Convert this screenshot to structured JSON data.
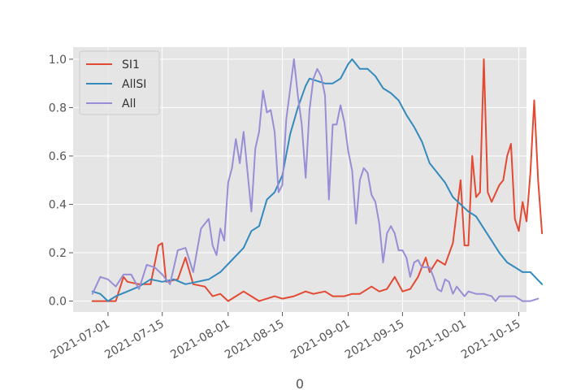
{
  "chart_data": {
    "type": "line",
    "xlabel": "0",
    "ylabel": "",
    "ylim": [
      -0.045,
      1.05
    ],
    "xlim": [
      "2021-06-22",
      "2021-10-17"
    ],
    "grid": true,
    "legend_position": "top-left",
    "x_ticks": [
      "2021-07-01",
      "2021-07-15",
      "2021-08-01",
      "2021-08-15",
      "2021-09-01",
      "2021-09-15",
      "2021-10-01",
      "2021-10-15"
    ],
    "y_ticks": [
      "0.0",
      "0.2",
      "0.4",
      "0.6",
      "0.8",
      "1.0"
    ],
    "series": [
      {
        "name": "SI1",
        "color": "#E24A33",
        "points": [
          [
            "2021-06-27",
            0.0
          ],
          [
            "2021-06-30",
            0.0
          ],
          [
            "2021-07-03",
            0.0
          ],
          [
            "2021-07-05",
            0.1
          ],
          [
            "2021-07-06",
            0.08
          ],
          [
            "2021-07-09",
            0.07
          ],
          [
            "2021-07-12",
            0.07
          ],
          [
            "2021-07-14",
            0.23
          ],
          [
            "2021-07-15",
            0.24
          ],
          [
            "2021-07-16",
            0.08
          ],
          [
            "2021-07-19",
            0.09
          ],
          [
            "2021-07-21",
            0.18
          ],
          [
            "2021-07-23",
            0.07
          ],
          [
            "2021-07-26",
            0.06
          ],
          [
            "2021-07-28",
            0.02
          ],
          [
            "2021-07-30",
            0.03
          ],
          [
            "2021-08-01",
            0.0
          ],
          [
            "2021-08-03",
            0.02
          ],
          [
            "2021-08-05",
            0.04
          ],
          [
            "2021-08-07",
            0.02
          ],
          [
            "2021-08-09",
            0.0
          ],
          [
            "2021-08-11",
            0.01
          ],
          [
            "2021-08-13",
            0.02
          ],
          [
            "2021-08-15",
            0.01
          ],
          [
            "2021-08-18",
            0.02
          ],
          [
            "2021-08-21",
            0.04
          ],
          [
            "2021-08-23",
            0.03
          ],
          [
            "2021-08-26",
            0.04
          ],
          [
            "2021-08-28",
            0.02
          ],
          [
            "2021-08-31",
            0.02
          ],
          [
            "2021-09-02",
            0.03
          ],
          [
            "2021-09-04",
            0.03
          ],
          [
            "2021-09-07",
            0.06
          ],
          [
            "2021-09-09",
            0.04
          ],
          [
            "2021-09-11",
            0.05
          ],
          [
            "2021-09-13",
            0.1
          ],
          [
            "2021-09-15",
            0.04
          ],
          [
            "2021-09-17",
            0.05
          ],
          [
            "2021-09-19",
            0.1
          ],
          [
            "2021-09-21",
            0.18
          ],
          [
            "2021-09-22",
            0.12
          ],
          [
            "2021-09-24",
            0.17
          ],
          [
            "2021-09-26",
            0.15
          ],
          [
            "2021-09-28",
            0.24
          ],
          [
            "2021-09-30",
            0.5
          ],
          [
            "2021-10-01",
            0.23
          ],
          [
            "2021-10-02",
            0.23
          ],
          [
            "2021-10-03",
            0.6
          ],
          [
            "2021-10-04",
            0.43
          ],
          [
            "2021-10-05",
            0.45
          ],
          [
            "2021-10-06",
            1.0
          ],
          [
            "2021-10-07",
            0.45
          ],
          [
            "2021-10-08",
            0.41
          ],
          [
            "2021-10-10",
            0.48
          ],
          [
            "2021-10-11",
            0.5
          ],
          [
            "2021-10-12",
            0.6
          ],
          [
            "2021-10-13",
            0.65
          ],
          [
            "2021-10-14",
            0.34
          ],
          [
            "2021-10-15",
            0.29
          ],
          [
            "2021-10-16",
            0.41
          ],
          [
            "2021-10-17",
            0.33
          ],
          [
            "2021-10-18",
            0.53
          ],
          [
            "2021-10-19",
            0.83
          ],
          [
            "2021-10-20",
            0.5
          ],
          [
            "2021-10-21",
            0.28
          ]
        ]
      },
      {
        "name": "AllSI",
        "color": "#348ABD",
        "points": [
          [
            "2021-06-27",
            0.04
          ],
          [
            "2021-06-29",
            0.03
          ],
          [
            "2021-07-01",
            0.0
          ],
          [
            "2021-07-03",
            0.02
          ],
          [
            "2021-07-06",
            0.04
          ],
          [
            "2021-07-09",
            0.06
          ],
          [
            "2021-07-12",
            0.09
          ],
          [
            "2021-07-15",
            0.08
          ],
          [
            "2021-07-18",
            0.09
          ],
          [
            "2021-07-21",
            0.07
          ],
          [
            "2021-07-24",
            0.08
          ],
          [
            "2021-07-27",
            0.09
          ],
          [
            "2021-07-30",
            0.12
          ],
          [
            "2021-08-02",
            0.17
          ],
          [
            "2021-08-05",
            0.22
          ],
          [
            "2021-08-07",
            0.29
          ],
          [
            "2021-08-09",
            0.31
          ],
          [
            "2021-08-11",
            0.42
          ],
          [
            "2021-08-13",
            0.45
          ],
          [
            "2021-08-15",
            0.52
          ],
          [
            "2021-08-17",
            0.69
          ],
          [
            "2021-08-19",
            0.8
          ],
          [
            "2021-08-21",
            0.89
          ],
          [
            "2021-08-22",
            0.92
          ],
          [
            "2021-08-24",
            0.91
          ],
          [
            "2021-08-26",
            0.9
          ],
          [
            "2021-08-28",
            0.9
          ],
          [
            "2021-08-30",
            0.92
          ],
          [
            "2021-09-01",
            0.98
          ],
          [
            "2021-09-02",
            1.0
          ],
          [
            "2021-09-04",
            0.96
          ],
          [
            "2021-09-06",
            0.96
          ],
          [
            "2021-09-08",
            0.93
          ],
          [
            "2021-09-10",
            0.88
          ],
          [
            "2021-09-12",
            0.86
          ],
          [
            "2021-09-14",
            0.83
          ],
          [
            "2021-09-16",
            0.77
          ],
          [
            "2021-09-18",
            0.72
          ],
          [
            "2021-09-20",
            0.66
          ],
          [
            "2021-09-22",
            0.57
          ],
          [
            "2021-09-24",
            0.53
          ],
          [
            "2021-09-26",
            0.49
          ],
          [
            "2021-09-28",
            0.43
          ],
          [
            "2021-09-30",
            0.4
          ],
          [
            "2021-10-02",
            0.37
          ],
          [
            "2021-10-04",
            0.35
          ],
          [
            "2021-10-06",
            0.3
          ],
          [
            "2021-10-08",
            0.25
          ],
          [
            "2021-10-10",
            0.2
          ],
          [
            "2021-10-12",
            0.16
          ],
          [
            "2021-10-14",
            0.14
          ],
          [
            "2021-10-16",
            0.12
          ],
          [
            "2021-10-18",
            0.12
          ],
          [
            "2021-10-21",
            0.07
          ]
        ]
      },
      {
        "name": "All",
        "color": "#988ED5",
        "points": [
          [
            "2021-06-27",
            0.03
          ],
          [
            "2021-06-29",
            0.1
          ],
          [
            "2021-07-01",
            0.09
          ],
          [
            "2021-07-03",
            0.06
          ],
          [
            "2021-07-05",
            0.11
          ],
          [
            "2021-07-07",
            0.11
          ],
          [
            "2021-07-09",
            0.05
          ],
          [
            "2021-07-11",
            0.15
          ],
          [
            "2021-07-13",
            0.14
          ],
          [
            "2021-07-15",
            0.11
          ],
          [
            "2021-07-17",
            0.07
          ],
          [
            "2021-07-19",
            0.21
          ],
          [
            "2021-07-21",
            0.22
          ],
          [
            "2021-07-23",
            0.12
          ],
          [
            "2021-07-25",
            0.3
          ],
          [
            "2021-07-27",
            0.34
          ],
          [
            "2021-07-28",
            0.23
          ],
          [
            "2021-07-29",
            0.19
          ],
          [
            "2021-07-30",
            0.3
          ],
          [
            "2021-07-31",
            0.25
          ],
          [
            "2021-08-01",
            0.49
          ],
          [
            "2021-08-02",
            0.55
          ],
          [
            "2021-08-03",
            0.67
          ],
          [
            "2021-08-04",
            0.57
          ],
          [
            "2021-08-05",
            0.7
          ],
          [
            "2021-08-07",
            0.37
          ],
          [
            "2021-08-08",
            0.63
          ],
          [
            "2021-08-09",
            0.7
          ],
          [
            "2021-08-10",
            0.87
          ],
          [
            "2021-08-11",
            0.78
          ],
          [
            "2021-08-12",
            0.79
          ],
          [
            "2021-08-13",
            0.7
          ],
          [
            "2021-08-14",
            0.45
          ],
          [
            "2021-08-15",
            0.48
          ],
          [
            "2021-08-16",
            0.75
          ],
          [
            "2021-08-18",
            1.0
          ],
          [
            "2021-08-19",
            0.85
          ],
          [
            "2021-08-20",
            0.73
          ],
          [
            "2021-08-21",
            0.51
          ],
          [
            "2021-08-22",
            0.79
          ],
          [
            "2021-08-23",
            0.92
          ],
          [
            "2021-08-24",
            0.96
          ],
          [
            "2021-08-25",
            0.93
          ],
          [
            "2021-08-26",
            0.85
          ],
          [
            "2021-08-27",
            0.42
          ],
          [
            "2021-08-28",
            0.73
          ],
          [
            "2021-08-29",
            0.73
          ],
          [
            "2021-08-30",
            0.81
          ],
          [
            "2021-08-31",
            0.74
          ],
          [
            "2021-09-01",
            0.62
          ],
          [
            "2021-09-02",
            0.54
          ],
          [
            "2021-09-03",
            0.32
          ],
          [
            "2021-09-04",
            0.5
          ],
          [
            "2021-09-05",
            0.55
          ],
          [
            "2021-09-06",
            0.53
          ],
          [
            "2021-09-07",
            0.44
          ],
          [
            "2021-09-08",
            0.41
          ],
          [
            "2021-09-09",
            0.32
          ],
          [
            "2021-09-10",
            0.16
          ],
          [
            "2021-09-11",
            0.28
          ],
          [
            "2021-09-12",
            0.31
          ],
          [
            "2021-09-13",
            0.28
          ],
          [
            "2021-09-14",
            0.21
          ],
          [
            "2021-09-15",
            0.21
          ],
          [
            "2021-09-16",
            0.18
          ],
          [
            "2021-09-17",
            0.1
          ],
          [
            "2021-09-18",
            0.16
          ],
          [
            "2021-09-19",
            0.17
          ],
          [
            "2021-09-20",
            0.14
          ],
          [
            "2021-09-22",
            0.14
          ],
          [
            "2021-09-23",
            0.1
          ],
          [
            "2021-09-24",
            0.05
          ],
          [
            "2021-09-25",
            0.04
          ],
          [
            "2021-09-26",
            0.09
          ],
          [
            "2021-09-27",
            0.08
          ],
          [
            "2021-09-28",
            0.03
          ],
          [
            "2021-09-29",
            0.06
          ],
          [
            "2021-09-30",
            0.04
          ],
          [
            "2021-10-01",
            0.02
          ],
          [
            "2021-10-02",
            0.04
          ],
          [
            "2021-10-04",
            0.03
          ],
          [
            "2021-10-06",
            0.03
          ],
          [
            "2021-10-08",
            0.02
          ],
          [
            "2021-10-09",
            0.0
          ],
          [
            "2021-10-10",
            0.02
          ],
          [
            "2021-10-12",
            0.02
          ],
          [
            "2021-10-14",
            0.02
          ],
          [
            "2021-10-16",
            0.0
          ],
          [
            "2021-10-18",
            0.0
          ],
          [
            "2021-10-20",
            0.01
          ]
        ]
      }
    ]
  },
  "colors": {
    "plot_background": "#E5E5E5",
    "grid": "#FFFFFF",
    "tick_text": "#555555"
  }
}
